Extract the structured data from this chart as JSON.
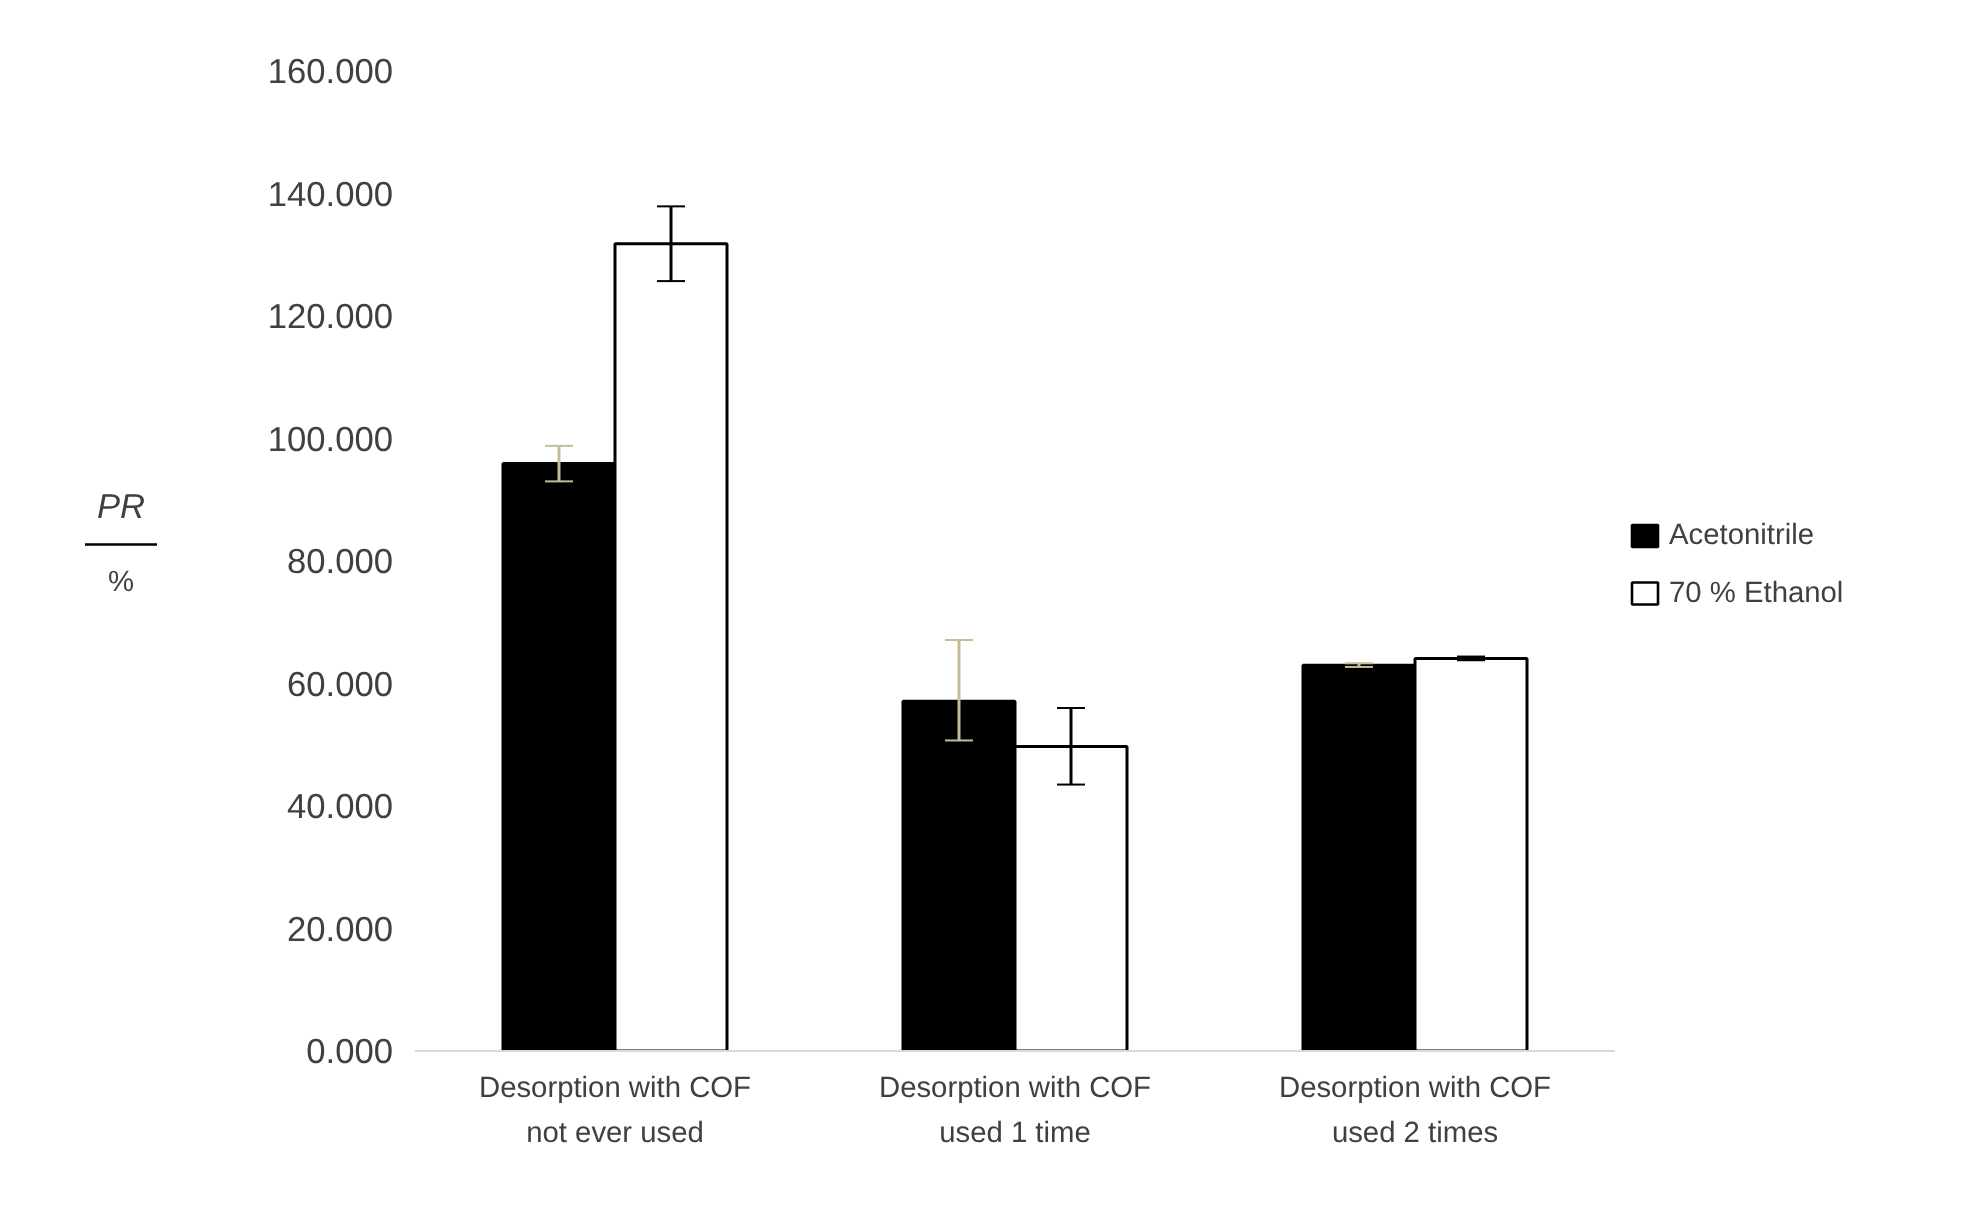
{
  "chart_data": {
    "type": "bar",
    "ylabel": "PR",
    "annotations": [
      "%"
    ],
    "categories": [
      "Desorption with COF not ever used",
      "Desorption with COF used 1 time",
      "Desorption with COF used 2 times"
    ],
    "series": [
      {
        "name": "Acetonitrile",
        "color": "#000000",
        "values": [
          95.9,
          57.1,
          63.0
        ],
        "errors": [
          2.9,
          [
            50.7,
            67.1
          ],
          0.3
        ]
      },
      {
        "name": "70 % Ethanol",
        "color": "#ffffff",
        "values": [
          131.8,
          49.7,
          64.1
        ],
        "errors": [
          6.1,
          [
            43.5,
            56.0
          ],
          0.3
        ]
      }
    ],
    "ylim": [
      0,
      160
    ],
    "yticks": [
      {
        "value": 0,
        "label": "0.000"
      },
      {
        "value": 20,
        "label": "20.000"
      },
      {
        "value": 40,
        "label": "40.000"
      },
      {
        "value": 60,
        "label": "60.000"
      },
      {
        "value": 80,
        "label": "80.000"
      },
      {
        "value": 100,
        "label": "100.000"
      },
      {
        "value": 120,
        "label": "120.000"
      },
      {
        "value": 140,
        "label": "140.000"
      },
      {
        "value": 160,
        "label": "160.000"
      }
    ],
    "grid": false,
    "legend": "right"
  }
}
